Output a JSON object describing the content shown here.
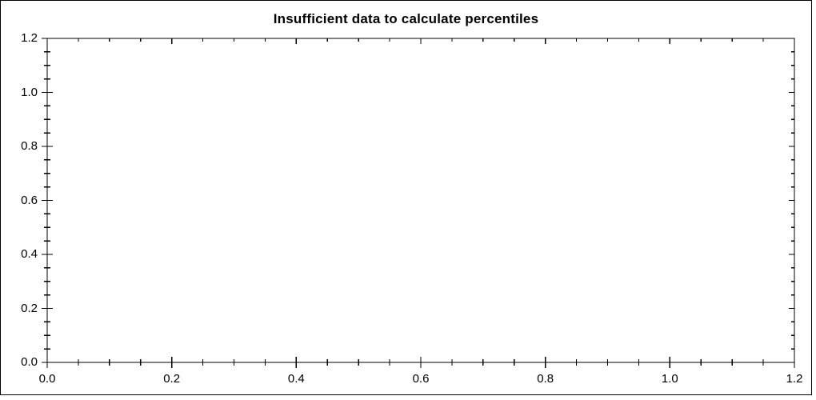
{
  "chart_data": {
    "type": "scatter",
    "title": "Insufficient data to calculate percentiles",
    "series": [],
    "xlabel": "",
    "ylabel": "",
    "xlim": [
      0,
      1.2
    ],
    "ylim": [
      0,
      1.2
    ],
    "x_ticks": {
      "major": [
        0.0,
        0.2,
        0.4,
        0.6,
        0.8,
        1.0,
        1.2
      ],
      "labels": [
        "0.0",
        "0.2",
        "0.4",
        "0.6",
        "0.8",
        "1.0",
        "1.2"
      ],
      "minor_step": 0.05
    },
    "y_ticks": {
      "major": [
        0.0,
        0.2,
        0.4,
        0.6,
        0.8,
        1.0,
        1.2
      ],
      "labels": [
        "0.0",
        "0.2",
        "0.4",
        "0.6",
        "0.8",
        "1.0",
        "1.2"
      ],
      "minor_step": 0.05
    },
    "grid": false,
    "legend": null,
    "colors": {
      "axis": "#000000",
      "text": "#000000",
      "background": "#ffffff"
    }
  }
}
